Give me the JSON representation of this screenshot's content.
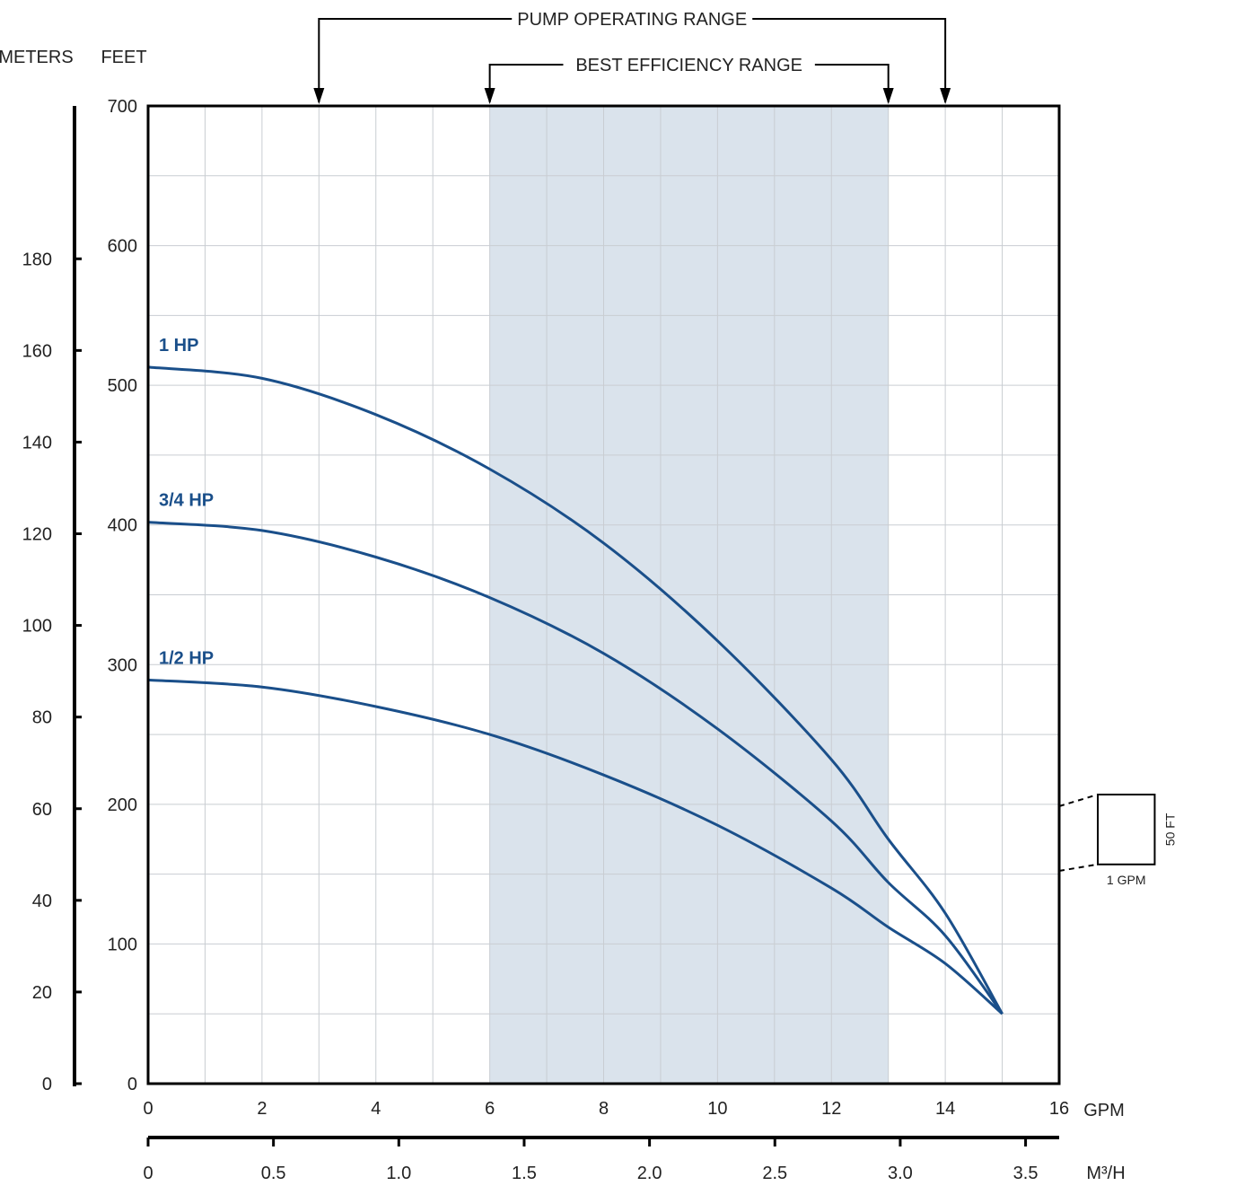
{
  "chart_data": {
    "type": "line",
    "x_units": "GPM",
    "x2_units": "M³/H",
    "y_units_left": "METERS",
    "y_units_right": "FEET",
    "x_ticks": [
      "0",
      "2",
      "4",
      "6",
      "8",
      "10",
      "12",
      "14",
      "16"
    ],
    "x2_ticks": [
      "0",
      "0.5",
      "1.0",
      "1.5",
      "2.0",
      "2.5",
      "3.0",
      "3.5"
    ],
    "feet_ticks": [
      "0",
      "100",
      "200",
      "300",
      "400",
      "500",
      "600",
      "700"
    ],
    "meters_ticks": [
      "0",
      "20",
      "40",
      "60",
      "80",
      "100",
      "120",
      "140",
      "160",
      "180"
    ],
    "xlim": [
      0,
      16
    ],
    "ylim_feet": [
      0,
      700
    ],
    "grid": true,
    "pump_operating_range": {
      "label": "PUMP OPERATING RANGE",
      "from_gpm": 3,
      "to_gpm": 14
    },
    "best_efficiency_range": {
      "label": "BEST EFFICIENCY RANGE",
      "from_gpm": 6,
      "to_gpm": 13
    },
    "scale_box": {
      "x_label": "1 GPM",
      "y_label": "50 FT"
    },
    "series": [
      {
        "name": "1 HP",
        "color": "#1a4f8a",
        "points": [
          [
            0,
            513
          ],
          [
            2,
            505
          ],
          [
            4,
            479
          ],
          [
            6,
            440
          ],
          [
            8,
            387
          ],
          [
            10,
            317
          ],
          [
            12,
            232
          ],
          [
            13,
            175
          ],
          [
            14,
            122
          ],
          [
            15,
            50
          ]
        ]
      },
      {
        "name": "3/4 HP",
        "color": "#1a4f8a",
        "points": [
          [
            0,
            402
          ],
          [
            2,
            396
          ],
          [
            4,
            377
          ],
          [
            6,
            348
          ],
          [
            8,
            308
          ],
          [
            10,
            254
          ],
          [
            12,
            188
          ],
          [
            13,
            144
          ],
          [
            14,
            106
          ],
          [
            15,
            50
          ]
        ]
      },
      {
        "name": "1/2 HP",
        "color": "#1a4f8a",
        "points": [
          [
            0,
            289
          ],
          [
            2,
            284
          ],
          [
            4,
            270
          ],
          [
            6,
            250
          ],
          [
            8,
            221
          ],
          [
            10,
            185
          ],
          [
            12,
            140
          ],
          [
            13,
            112
          ],
          [
            14,
            86
          ],
          [
            15,
            50
          ]
        ]
      }
    ]
  }
}
